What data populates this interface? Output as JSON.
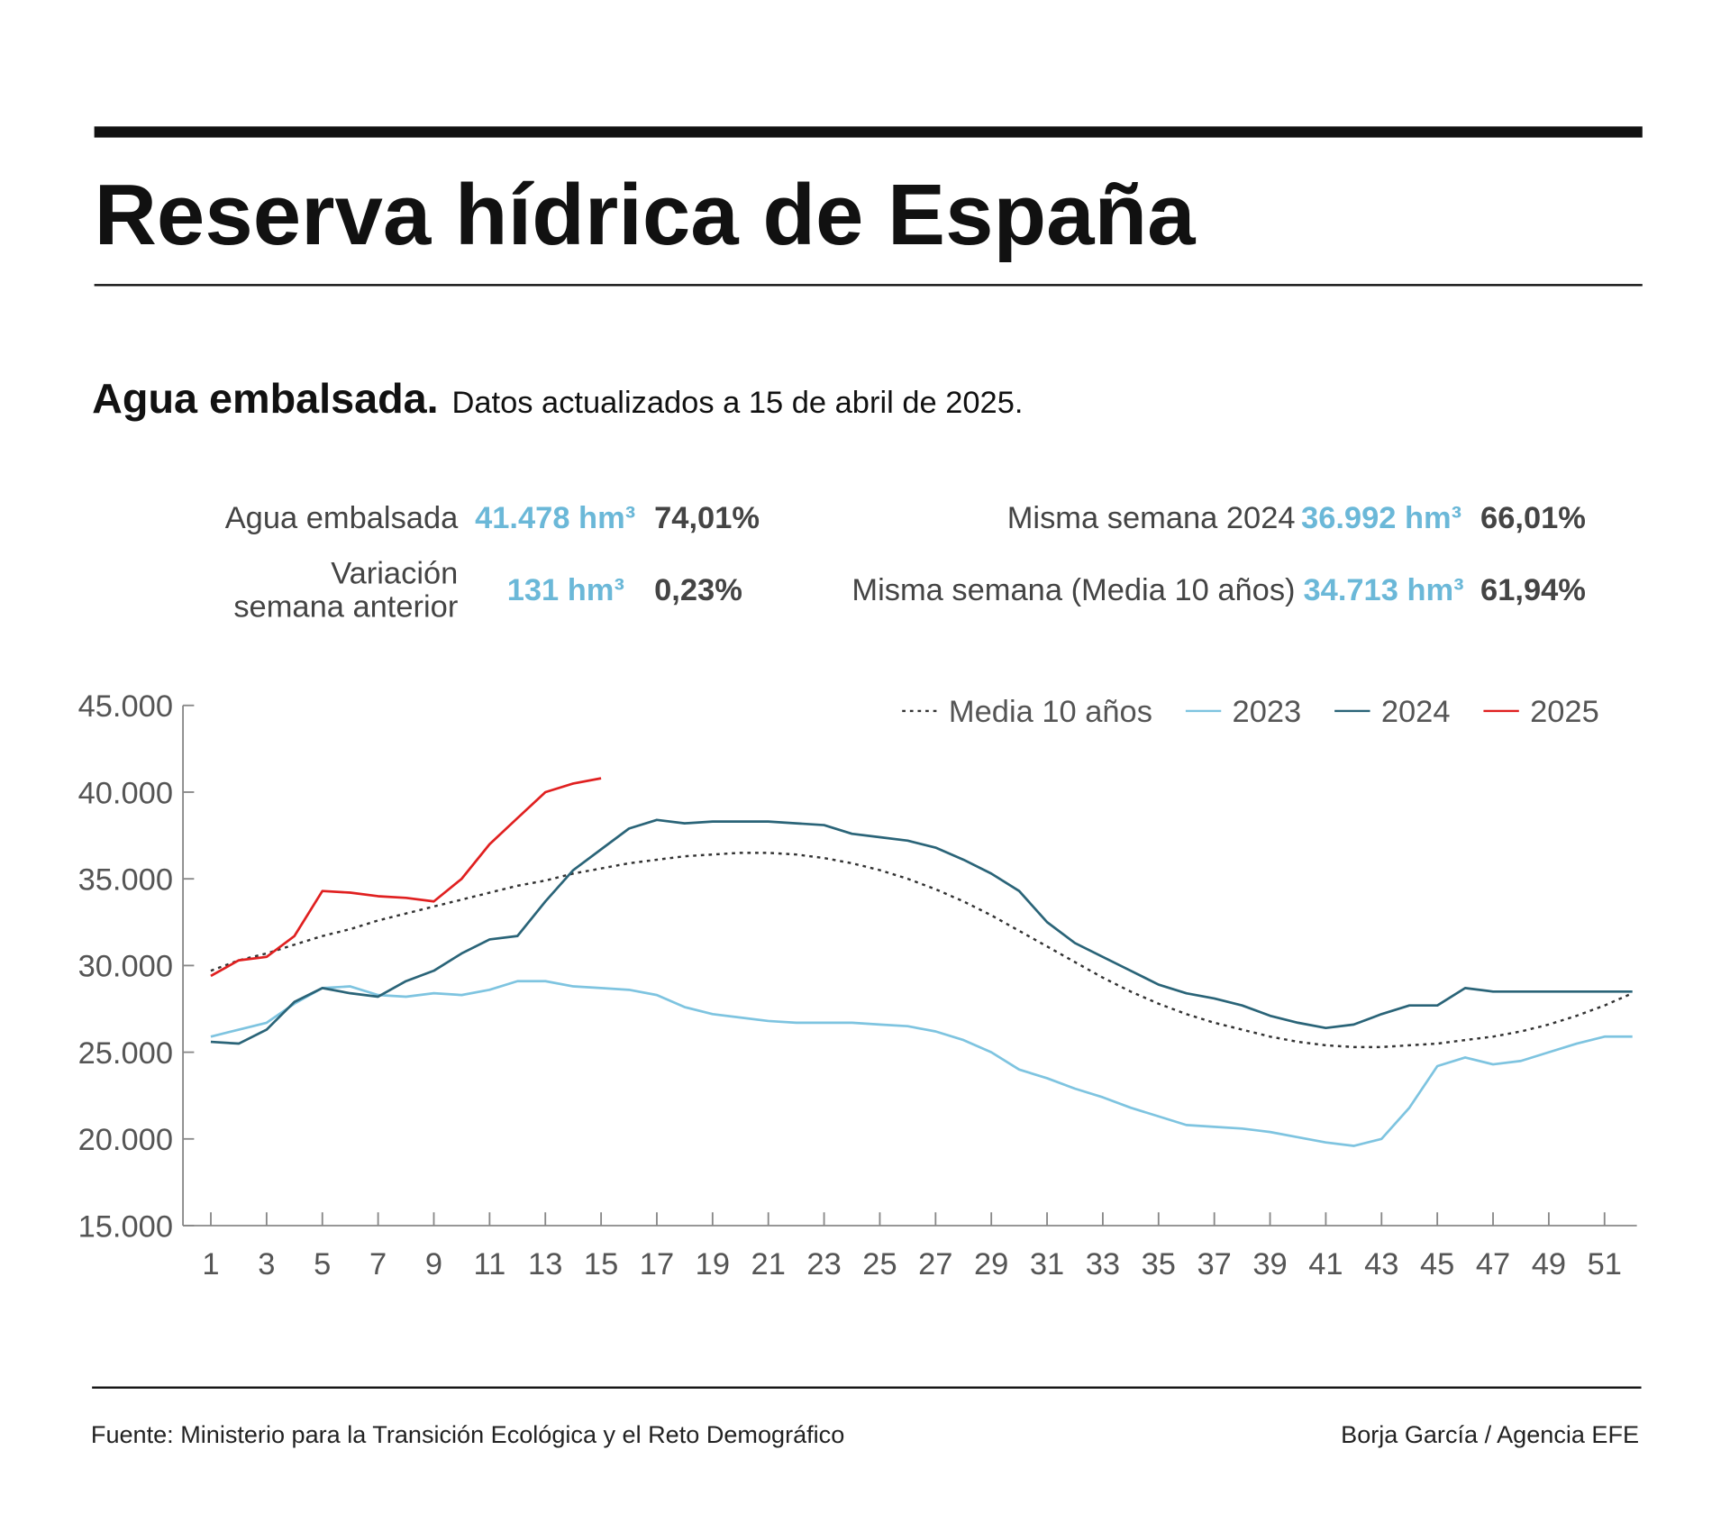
{
  "header": {
    "title": "Reserva hídrica de España",
    "subtitle_bold": "Agua embalsada.",
    "subtitle": "Datos actualizados a 15 de abril de 2025."
  },
  "stats": [
    {
      "label": [
        "Agua embalsada"
      ],
      "volume": "41.478 hm³",
      "percent": "74,01%"
    },
    {
      "label": [
        "Variación",
        "semana anterior"
      ],
      "volume": "131 hm³",
      "percent": "0,23%"
    },
    {
      "label": [
        "Misma semana 2024"
      ],
      "volume": "36.992 hm³",
      "percent": "66,01%"
    },
    {
      "label": [
        "Misma semana (Media 10 años)"
      ],
      "volume": "34.713 hm³",
      "percent": "61,94%"
    }
  ],
  "chart_data": {
    "type": "line",
    "legend": "top-right",
    "x": [
      1,
      2,
      3,
      4,
      5,
      6,
      7,
      8,
      9,
      10,
      11,
      12,
      13,
      14,
      15,
      16,
      17,
      18,
      19,
      20,
      21,
      22,
      23,
      24,
      25,
      26,
      27,
      28,
      29,
      30,
      31,
      32,
      33,
      34,
      35,
      36,
      37,
      38,
      39,
      40,
      41,
      42,
      43,
      44,
      45,
      46,
      47,
      48,
      49,
      50,
      51,
      52
    ],
    "series": [
      {
        "name": "Media 10 años",
        "color": "#333333",
        "dashed": true,
        "values": [
          29700,
          30300,
          30700,
          31200,
          31700,
          32100,
          32600,
          33000,
          33400,
          33800,
          34200,
          34600,
          34900,
          35300,
          35600,
          35900,
          36100,
          36300,
          36400,
          36500,
          36500,
          36400,
          36200,
          35900,
          35500,
          35000,
          34400,
          33700,
          32900,
          32000,
          31100,
          30200,
          29300,
          28500,
          27800,
          27200,
          26700,
          26300,
          25900,
          25600,
          25400,
          25300,
          25300,
          25400,
          25500,
          25700,
          25900,
          26200,
          26600,
          27100,
          27700,
          28400
        ]
      },
      {
        "name": "2023",
        "color": "#7ec4e0",
        "values": [
          25900,
          26300,
          26700,
          27800,
          28700,
          28800,
          28300,
          28200,
          28400,
          28300,
          28600,
          29100,
          29100,
          28800,
          28700,
          28600,
          28300,
          27600,
          27200,
          27000,
          26800,
          26700,
          26700,
          26700,
          26600,
          26500,
          26200,
          25700,
          25000,
          24000,
          23500,
          22900,
          22400,
          21800,
          21300,
          20800,
          20700,
          20600,
          20400,
          20100,
          19800,
          19600,
          20000,
          21800,
          24200,
          24700,
          24300,
          24500,
          25000,
          25500,
          25900,
          25900
        ]
      },
      {
        "name": "2024",
        "color": "#2a6478",
        "values": [
          25600,
          25500,
          26300,
          27900,
          28700,
          28400,
          28200,
          29100,
          29700,
          30700,
          31500,
          31700,
          33700,
          35500,
          36700,
          37900,
          38400,
          38200,
          38300,
          38300,
          38300,
          38200,
          38100,
          37600,
          37400,
          37200,
          36800,
          36100,
          35300,
          34300,
          32500,
          31300,
          30500,
          29700,
          28900,
          28400,
          28100,
          27700,
          27100,
          26700,
          26400,
          26600,
          27200,
          27700,
          27700,
          28700,
          28500,
          28500,
          28500,
          28500,
          28500,
          28500
        ]
      },
      {
        "name": "2025",
        "color": "#e02020",
        "values": [
          29400,
          30300,
          30500,
          31700,
          34300,
          34200,
          34000,
          33900,
          33700,
          35000,
          37000,
          38500,
          40000,
          40500,
          40800,
          null,
          null,
          null,
          null,
          null,
          null,
          null,
          null,
          null,
          null,
          null,
          null,
          null,
          null,
          null,
          null,
          null,
          null,
          null,
          null,
          null,
          null,
          null,
          null,
          null,
          null,
          null,
          null,
          null,
          null,
          null,
          null,
          null,
          null,
          null,
          null,
          null
        ]
      }
    ],
    "xlim": [
      0,
      52
    ],
    "xticks": [
      1,
      3,
      5,
      7,
      9,
      11,
      13,
      15,
      17,
      19,
      21,
      23,
      25,
      27,
      29,
      31,
      33,
      35,
      37,
      39,
      41,
      43,
      45,
      47,
      49,
      51
    ],
    "ylim": [
      15000,
      45000
    ],
    "yticks": [
      {
        "value": 15000,
        "label": "15.000"
      },
      {
        "value": 20000,
        "label": "20.000"
      },
      {
        "value": 25000,
        "label": "25.000"
      },
      {
        "value": 30000,
        "label": "30.000"
      },
      {
        "value": 35000,
        "label": "35.000"
      },
      {
        "value": 40000,
        "label": "40.000"
      },
      {
        "value": 45000,
        "label": "45.000"
      }
    ]
  },
  "footer": {
    "source": "Fuente: Ministerio para la Transición Ecológica y el Reto Demográfico",
    "credit": "Borja García / Agencia EFE"
  }
}
